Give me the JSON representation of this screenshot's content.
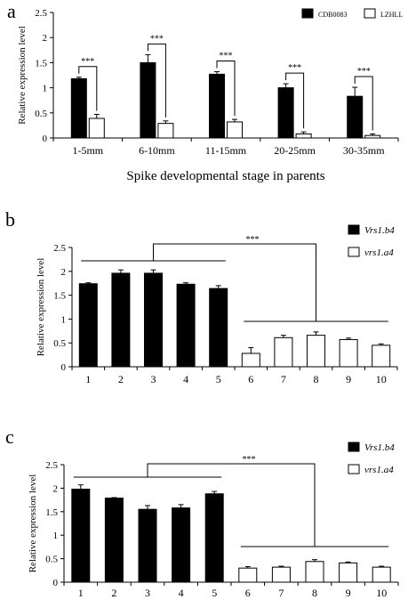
{
  "chart_data": [
    {
      "panel_label": "a",
      "type": "bar",
      "categories": [
        "1-5mm",
        "6-10mm",
        "11-15mm",
        "20-25mm",
        "30-35mm"
      ],
      "series": [
        {
          "name": "CDB0083",
          "color": "#000000",
          "values": [
            1.18,
            1.5,
            1.27,
            1.0,
            0.83
          ],
          "errors": [
            0.03,
            0.16,
            0.05,
            0.08,
            0.18
          ]
        },
        {
          "name": "LZHLL",
          "color": "#ffffff",
          "values": [
            0.39,
            0.29,
            0.32,
            0.08,
            0.05
          ],
          "errors": [
            0.08,
            0.05,
            0.05,
            0.04,
            0.03
          ]
        }
      ],
      "xlabel": "Spike developmental stage in parents",
      "ylabel": "Relative expression level",
      "ylim": [
        0,
        2.5
      ],
      "yticks": [
        "0",
        "0.5",
        "1",
        "1.5",
        "2",
        "2.5"
      ],
      "significance": [
        "***",
        "***",
        "***",
        "***",
        "***"
      ],
      "legend_position": "top-right",
      "grid": false
    },
    {
      "panel_label": "b",
      "type": "bar",
      "categories": [
        "1",
        "2",
        "3",
        "4",
        "5",
        "6",
        "7",
        "8",
        "9",
        "10"
      ],
      "series": [
        {
          "name": "Vrs1.b4",
          "color": "#000000",
          "values": [
            1.74,
            1.96,
            1.96,
            1.73,
            1.64,
            null,
            null,
            null,
            null,
            null
          ],
          "errors": [
            0.02,
            0.07,
            0.07,
            0.03,
            0.06,
            null,
            null,
            null,
            null,
            null
          ]
        },
        {
          "name": "vrs1.a4",
          "color": "#ffffff",
          "values": [
            null,
            null,
            null,
            null,
            null,
            0.28,
            0.61,
            0.66,
            0.57,
            0.45
          ],
          "errors": [
            null,
            null,
            null,
            null,
            null,
            0.12,
            0.05,
            0.07,
            0.03,
            0.03
          ]
        }
      ],
      "ylabel": "Relative expression level",
      "ylim": [
        0,
        2.5
      ],
      "yticks": [
        "0",
        "0.5",
        "1",
        "1.5",
        "2",
        "2.5"
      ],
      "significance": "***",
      "legend_position": "top-right",
      "grid": false
    },
    {
      "panel_label": "c",
      "type": "bar",
      "categories": [
        "1",
        "2",
        "3",
        "4",
        "5",
        "6",
        "7",
        "8",
        "9",
        "10"
      ],
      "series": [
        {
          "name": "Vrs1.b4",
          "color": "#000000",
          "values": [
            1.98,
            1.79,
            1.55,
            1.58,
            1.88,
            null,
            null,
            null,
            null,
            null
          ],
          "errors": [
            0.09,
            0.01,
            0.08,
            0.07,
            0.05,
            null,
            null,
            null,
            null,
            null
          ]
        },
        {
          "name": "vrs1.a4",
          "color": "#ffffff",
          "values": [
            null,
            null,
            null,
            null,
            null,
            0.3,
            0.32,
            0.44,
            0.41,
            0.32
          ],
          "errors": [
            null,
            null,
            null,
            null,
            null,
            0.03,
            0.02,
            0.04,
            0.02,
            0.02
          ]
        }
      ],
      "ylabel": "Relative expression level",
      "ylim": [
        0,
        2.5
      ],
      "yticks": [
        "0",
        "0.5",
        "1",
        "1.5",
        "2",
        "2.5"
      ],
      "significance": "***",
      "legend_position": "top-right",
      "grid": false
    }
  ]
}
